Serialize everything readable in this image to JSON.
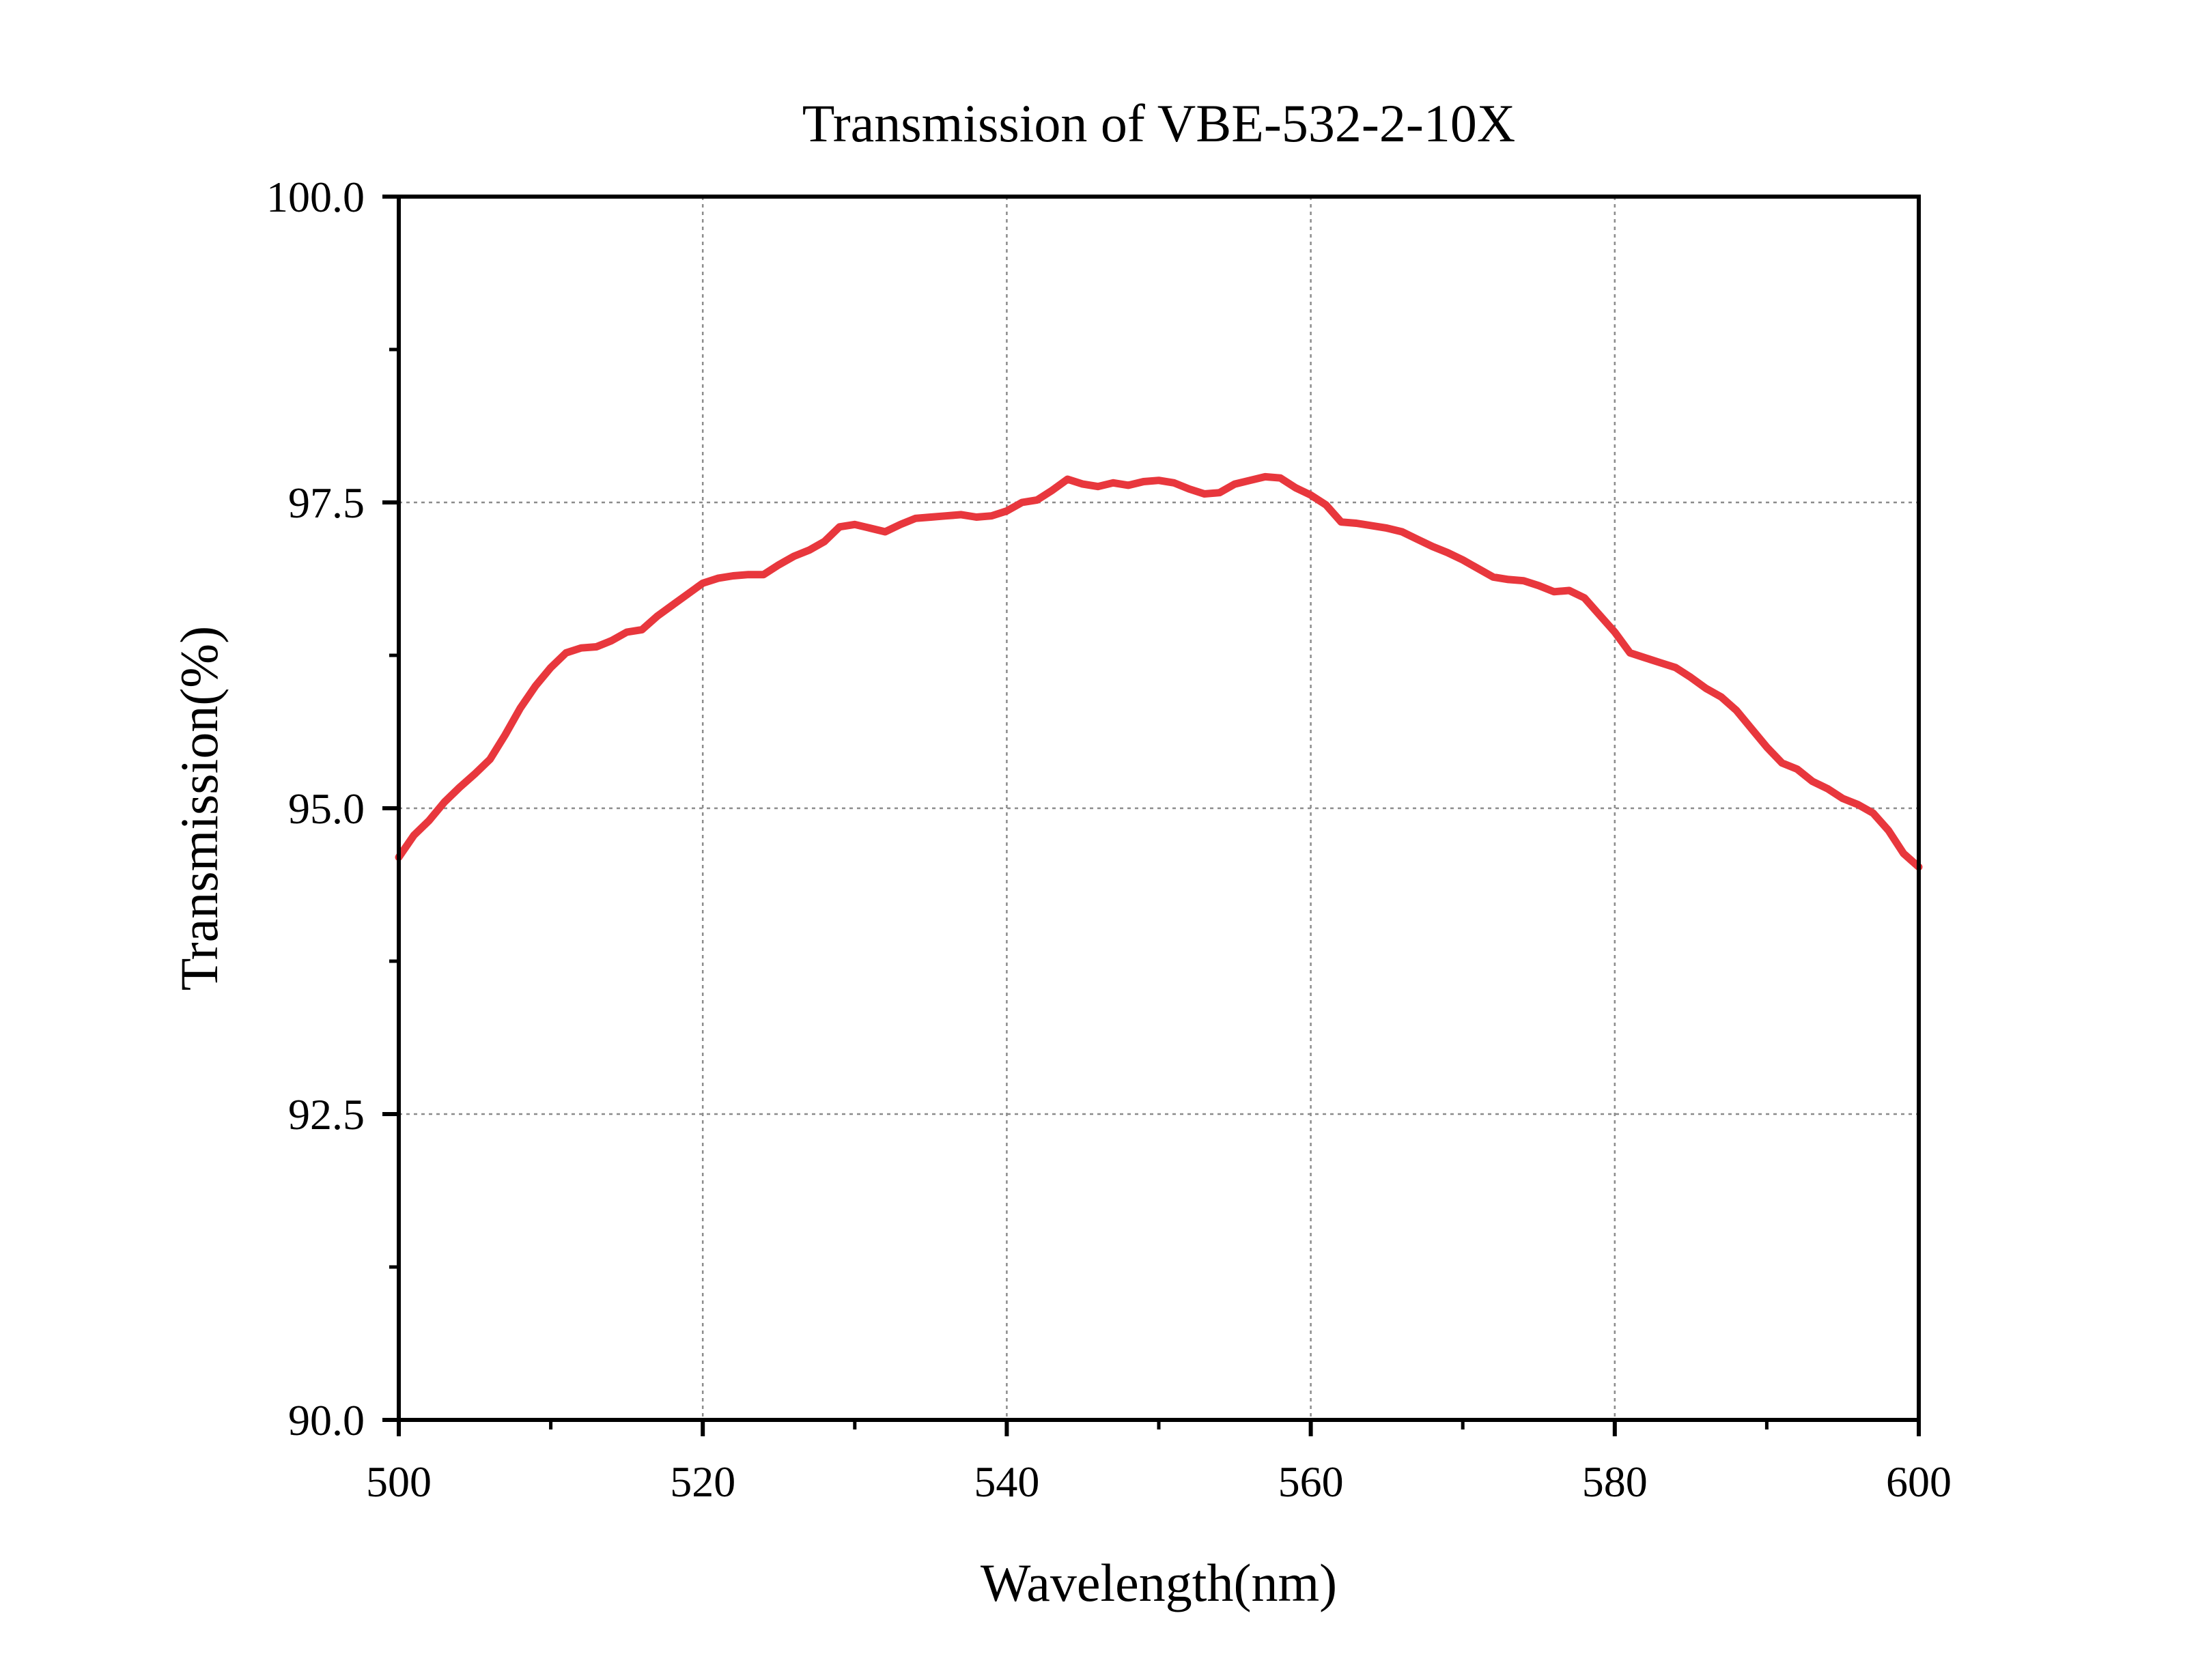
{
  "chart_data": {
    "type": "line",
    "title": "Transmission of VBE-532-2-10X",
    "xlabel": "Wavelength(nm)",
    "ylabel": "Transmission(%)",
    "xlim": [
      500,
      600
    ],
    "ylim": [
      90.0,
      100.0
    ],
    "x_ticks": [
      500,
      520,
      540,
      560,
      580,
      600
    ],
    "x_tick_labels": [
      "500",
      "520",
      "540",
      "560",
      "580",
      "600"
    ],
    "y_ticks": [
      90.0,
      92.5,
      95.0,
      97.5,
      100.0
    ],
    "y_tick_labels": [
      "90.0",
      "92.5",
      "95.0",
      "97.5",
      "100.0"
    ],
    "x_minor_ticks": [
      510,
      530,
      550,
      570,
      590
    ],
    "y_minor_ticks": [
      91.25,
      93.75,
      96.25,
      98.75
    ],
    "grid": true,
    "grid_style": "dotted",
    "series": [
      {
        "color": "#e8373d",
        "x": [
          500,
          501,
          502,
          503,
          504,
          505,
          506,
          507,
          508,
          509,
          510,
          511,
          512,
          513,
          514,
          515,
          516,
          517,
          518,
          519,
          520,
          521,
          522,
          523,
          524,
          525,
          526,
          527,
          528,
          529,
          530,
          531,
          532,
          533,
          534,
          535,
          536,
          537,
          538,
          539,
          540,
          541,
          542,
          543,
          544,
          545,
          546,
          547,
          548,
          549,
          550,
          551,
          552,
          553,
          554,
          555,
          556,
          557,
          558,
          559,
          560,
          561,
          562,
          563,
          564,
          565,
          566,
          567,
          568,
          569,
          570,
          571,
          572,
          573,
          574,
          575,
          576,
          577,
          578,
          579,
          580,
          581,
          582,
          583,
          584,
          585,
          586,
          587,
          588,
          589,
          590,
          591,
          592,
          593,
          594,
          595,
          596,
          597,
          598,
          599,
          600
        ],
        "y": [
          94.6,
          94.78,
          94.9,
          95.05,
          95.17,
          95.28,
          95.4,
          95.6,
          95.82,
          96.0,
          96.15,
          96.27,
          96.31,
          96.32,
          96.37,
          96.44,
          96.46,
          96.57,
          96.66,
          96.75,
          96.84,
          96.88,
          96.9,
          96.91,
          96.91,
          96.99,
          97.06,
          97.11,
          97.18,
          97.3,
          97.32,
          97.29,
          97.26,
          97.32,
          97.37,
          97.38,
          97.39,
          97.4,
          97.38,
          97.39,
          97.43,
          97.5,
          97.52,
          97.6,
          97.69,
          97.65,
          97.63,
          97.66,
          97.64,
          97.67,
          97.68,
          97.66,
          97.61,
          97.57,
          97.58,
          97.65,
          97.68,
          97.71,
          97.7,
          97.62,
          97.56,
          97.48,
          97.34,
          97.33,
          97.31,
          97.29,
          97.26,
          97.2,
          97.14,
          97.09,
          97.03,
          96.96,
          96.89,
          96.87,
          96.86,
          96.82,
          96.77,
          96.78,
          96.72,
          96.58,
          96.44,
          96.27,
          96.23,
          96.19,
          96.15,
          96.07,
          95.98,
          95.91,
          95.8,
          95.65,
          95.5,
          95.37,
          95.32,
          95.22,
          95.16,
          95.08,
          95.03,
          94.96,
          94.82,
          94.63,
          94.52
        ]
      }
    ]
  }
}
